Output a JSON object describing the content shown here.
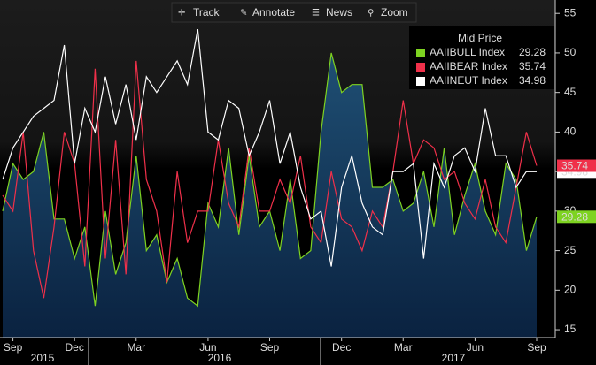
{
  "toolbar": [
    "Track",
    "Annotate",
    "News",
    "Zoom"
  ],
  "chart_data": {
    "type": "line",
    "legend_title": "Mid Price",
    "categories": [
      null,
      "Sep",
      null,
      null,
      null,
      null,
      null,
      "Dec",
      null,
      null,
      null,
      null,
      null,
      "Mar",
      null,
      null,
      null,
      null,
      null,
      null,
      "Jun",
      null,
      null,
      null,
      null,
      null,
      "Sep",
      null,
      null,
      null,
      null,
      null,
      null,
      "Dec",
      null,
      null,
      null,
      null,
      null,
      "Mar",
      null,
      null,
      null,
      null,
      null,
      null,
      "Jun",
      null,
      null,
      null,
      null,
      null,
      "Sep"
    ],
    "years": [
      "2015",
      "2016",
      "2017"
    ],
    "series": [
      {
        "name": "AAIIBULL Index",
        "color": "#7ed321",
        "fill": true,
        "values": [
          30,
          36,
          34,
          35,
          40,
          29,
          29,
          24,
          28,
          18,
          30,
          22,
          26,
          37,
          25,
          27,
          21,
          24,
          19,
          18,
          31,
          28,
          38,
          27,
          37,
          28,
          30,
          25,
          34,
          24,
          25,
          40,
          50,
          45,
          46,
          46,
          33,
          33,
          34,
          30,
          31,
          35,
          28,
          38,
          27,
          32,
          36,
          30,
          27,
          36,
          34,
          25,
          29.28
        ]
      },
      {
        "name": "AAIIBEAR Index",
        "color": "#f0304a",
        "values": [
          32,
          30,
          40,
          25,
          19,
          28,
          40,
          36,
          23,
          48,
          24,
          39,
          22,
          49,
          34,
          30,
          21,
          35,
          26,
          30,
          30,
          39,
          31,
          28,
          38,
          30,
          30,
          34,
          31,
          37,
          28,
          26,
          35,
          29,
          28,
          25,
          30,
          28,
          35,
          44,
          36,
          39,
          38,
          34,
          35,
          31,
          29,
          34,
          28,
          26,
          33,
          40,
          35.74
        ]
      },
      {
        "name": "AAIINEUT Index",
        "color": "#ffffff",
        "values": [
          34,
          38,
          40,
          42,
          43,
          44,
          51,
          36,
          43,
          40,
          47,
          41,
          46,
          39,
          47,
          45,
          47,
          49,
          46,
          53,
          40,
          39,
          44,
          43,
          37,
          40,
          44,
          36,
          40,
          33,
          29,
          30,
          23,
          33,
          37,
          31,
          28,
          27,
          35,
          35,
          36,
          24,
          36,
          33,
          37,
          38,
          35,
          43,
          37,
          37,
          33,
          35,
          34.98
        ]
      }
    ],
    "ylim": [
      14,
      56.7
    ],
    "yticks": [
      15,
      20,
      25,
      30,
      35,
      40,
      45,
      50,
      55
    ]
  }
}
